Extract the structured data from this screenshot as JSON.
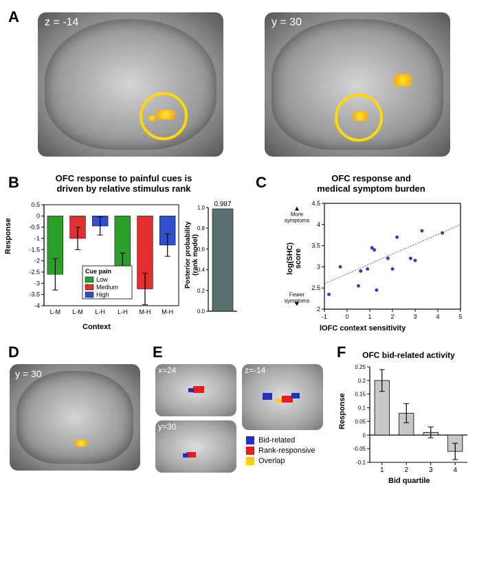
{
  "panelA": {
    "label": "A",
    "left_image": {
      "coord": "z = -14"
    },
    "right_image": {
      "coord": "y = 30"
    }
  },
  "panelB": {
    "label": "B",
    "title": "OFC response to painful cues is\ndriven by relative stimulus rank",
    "y_label": "Response",
    "x_label": "Context",
    "categories": [
      "L-M",
      "L-M",
      "L-H",
      "L-H",
      "M-H",
      "M-H"
    ],
    "bars": [
      {
        "val": -2.6,
        "err": 0.7,
        "color": "#2aa02a"
      },
      {
        "val": -1.0,
        "err": 0.5,
        "color": "#e03030"
      },
      {
        "val": -0.45,
        "err": 0.4,
        "color": "#3050d0"
      },
      {
        "val": -2.35,
        "err": 0.7,
        "color": "#2aa02a"
      },
      {
        "val": -3.25,
        "err": 0.7,
        "color": "#e03030"
      },
      {
        "val": -1.3,
        "err": 0.5,
        "color": "#3050d0"
      }
    ],
    "ylim": [
      -4,
      0.5
    ],
    "yticks": [
      -4,
      -3.5,
      -3,
      -2.5,
      -2,
      -1.5,
      -1,
      -0.5,
      0,
      0.5
    ],
    "legend": {
      "title": "Cue pain",
      "items": [
        {
          "label": "Low",
          "color": "#2aa02a"
        },
        {
          "label": "Medium",
          "color": "#e03030"
        },
        {
          "label": "High",
          "color": "#3050d0"
        }
      ]
    },
    "posterior": {
      "y_label": "Posterior probability\n(rank model)",
      "value": 0.987,
      "color": "#5a7070"
    }
  },
  "panelC": {
    "label": "C",
    "title": "OFC response and\nmedical symptom burden",
    "x_label": "lOFC context sensitivity",
    "y_label": "log(SHC)\nscore",
    "y_upper": "More\nsymptoms",
    "y_lower": "Fewer\nsymptoms",
    "xlim": [
      -1,
      5
    ],
    "xticks": [
      -1,
      0,
      1,
      2,
      3,
      4,
      5
    ],
    "ylim": [
      2,
      4.5
    ],
    "yticks": [
      2,
      2.5,
      3,
      3.5,
      4,
      4.5
    ],
    "points": [
      [
        -0.8,
        2.35
      ],
      [
        -0.3,
        3.0
      ],
      [
        0.5,
        2.55
      ],
      [
        0.6,
        2.9
      ],
      [
        0.9,
        2.95
      ],
      [
        1.1,
        3.45
      ],
      [
        1.2,
        3.4
      ],
      [
        1.3,
        2.45
      ],
      [
        1.8,
        3.2
      ],
      [
        2.0,
        2.95
      ],
      [
        2.2,
        3.7
      ],
      [
        2.8,
        3.2
      ],
      [
        3.0,
        3.15
      ],
      [
        3.3,
        3.85
      ],
      [
        4.2,
        3.8
      ]
    ],
    "line": {
      "x1": -1,
      "y1": 2.6,
      "x2": 5,
      "y2": 4.0
    },
    "point_color": "#3040c0"
  },
  "panelD": {
    "label": "D",
    "coord": "y = 30"
  },
  "panelE": {
    "label": "E",
    "images": [
      {
        "coord": "x=24"
      },
      {
        "coord": "y=30"
      },
      {
        "coord": "z=-14"
      }
    ],
    "legend": [
      {
        "label": "Bid-related",
        "color": "#2030c0"
      },
      {
        "label": "Rank-responsive",
        "color": "#e02020"
      },
      {
        "label": "Overlap",
        "color": "#ffd000"
      }
    ]
  },
  "panelF": {
    "label": "F",
    "title": "OFC bid-related activity",
    "y_label": "Response",
    "x_label": "Bid quartile",
    "categories": [
      "1",
      "2",
      "3",
      "4"
    ],
    "bars": [
      {
        "val": 0.2,
        "err": 0.04
      },
      {
        "val": 0.08,
        "err": 0.035
      },
      {
        "val": 0.01,
        "err": 0.02
      },
      {
        "val": -0.06,
        "err": 0.03
      }
    ],
    "ylim": [
      -0.1,
      0.25
    ],
    "yticks": [
      -0.1,
      -0.05,
      0,
      0.05,
      0.1,
      0.15,
      0.2,
      0.25
    ],
    "bar_color": "#c8c8c8"
  }
}
